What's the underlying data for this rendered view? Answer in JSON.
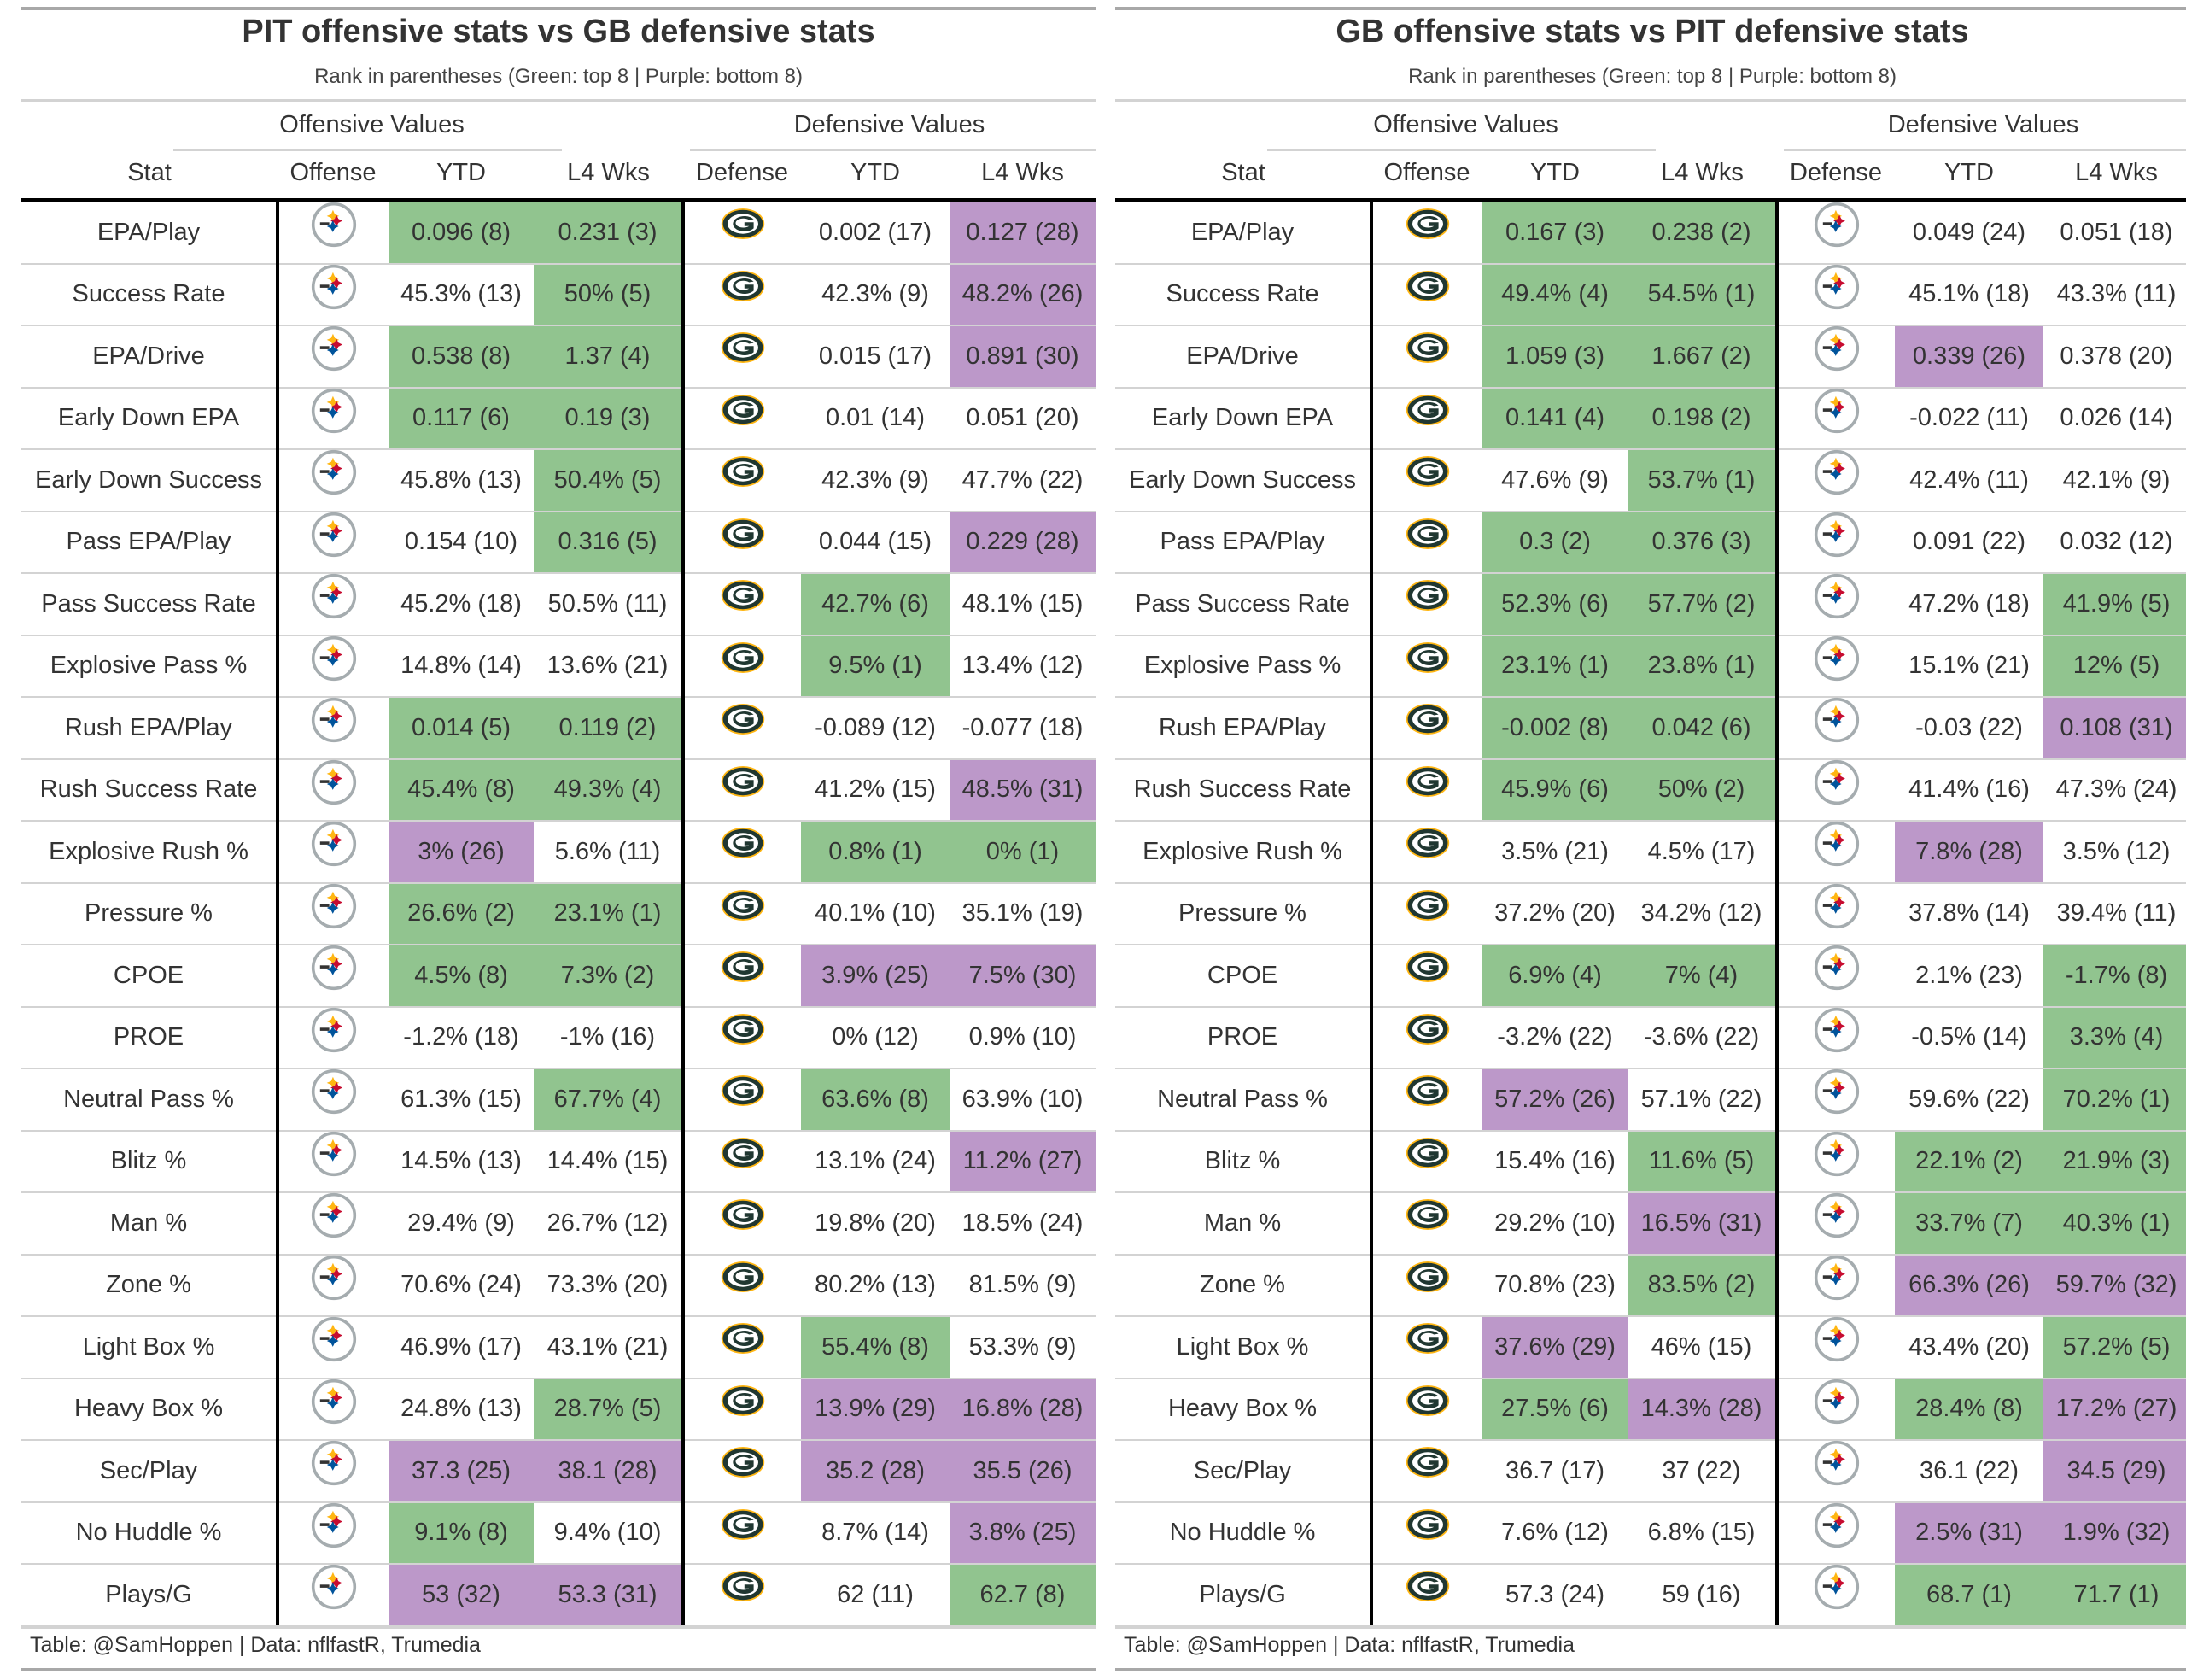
{
  "legend_colors": {
    "top8": "#91c48f",
    "bottom8": "#bc98c9"
  },
  "tables": [
    {
      "title": "PIT offensive stats vs GB defensive stats",
      "subtitle": "Rank in parentheses (Green: top 8 | Purple: bottom 8)",
      "group_headers": {
        "offense": "Offensive Values",
        "defense": "Defensive Values"
      },
      "columns": {
        "stat": "Stat",
        "offense": "Offense",
        "off_ytd": "YTD",
        "off_l4": "L4 Wks",
        "defense": "Defense",
        "def_ytd": "YTD",
        "def_l4": "L4 Wks"
      },
      "offense_team": "PIT",
      "offense_logo": "steelers-logo-icon",
      "defense_team": "GB",
      "defense_logo": "packers-logo-icon",
      "footer": "Table: @SamHoppen | Data: nflfastR, Trumedia",
      "rows": [
        {
          "stat": "EPA/Play",
          "off_ytd": "0.096 (8)",
          "off_ytd_c": "green",
          "off_l4": "0.231 (3)",
          "off_l4_c": "green",
          "def_ytd": "0.002 (17)",
          "def_ytd_c": "",
          "def_l4": "0.127 (28)",
          "def_l4_c": "purple"
        },
        {
          "stat": "Success Rate",
          "off_ytd": "45.3% (13)",
          "off_ytd_c": "",
          "off_l4": "50% (5)",
          "off_l4_c": "green",
          "def_ytd": "42.3% (9)",
          "def_ytd_c": "",
          "def_l4": "48.2% (26)",
          "def_l4_c": "purple"
        },
        {
          "stat": "EPA/Drive",
          "off_ytd": "0.538 (8)",
          "off_ytd_c": "green",
          "off_l4": "1.37 (4)",
          "off_l4_c": "green",
          "def_ytd": "0.015 (17)",
          "def_ytd_c": "",
          "def_l4": "0.891 (30)",
          "def_l4_c": "purple"
        },
        {
          "stat": "Early Down EPA",
          "off_ytd": "0.117 (6)",
          "off_ytd_c": "green",
          "off_l4": "0.19 (3)",
          "off_l4_c": "green",
          "def_ytd": "0.01 (14)",
          "def_ytd_c": "",
          "def_l4": "0.051 (20)",
          "def_l4_c": ""
        },
        {
          "stat": "Early Down Success",
          "off_ytd": "45.8% (13)",
          "off_ytd_c": "",
          "off_l4": "50.4% (5)",
          "off_l4_c": "green",
          "def_ytd": "42.3% (9)",
          "def_ytd_c": "",
          "def_l4": "47.7% (22)",
          "def_l4_c": ""
        },
        {
          "stat": "Pass EPA/Play",
          "off_ytd": "0.154 (10)",
          "off_ytd_c": "",
          "off_l4": "0.316 (5)",
          "off_l4_c": "green",
          "def_ytd": "0.044 (15)",
          "def_ytd_c": "",
          "def_l4": "0.229 (28)",
          "def_l4_c": "purple"
        },
        {
          "stat": "Pass Success Rate",
          "off_ytd": "45.2% (18)",
          "off_ytd_c": "",
          "off_l4": "50.5% (11)",
          "off_l4_c": "",
          "def_ytd": "42.7% (6)",
          "def_ytd_c": "green",
          "def_l4": "48.1% (15)",
          "def_l4_c": ""
        },
        {
          "stat": "Explosive Pass %",
          "off_ytd": "14.8% (14)",
          "off_ytd_c": "",
          "off_l4": "13.6% (21)",
          "off_l4_c": "",
          "def_ytd": "9.5% (1)",
          "def_ytd_c": "green",
          "def_l4": "13.4% (12)",
          "def_l4_c": ""
        },
        {
          "stat": "Rush EPA/Play",
          "off_ytd": "0.014 (5)",
          "off_ytd_c": "green",
          "off_l4": "0.119 (2)",
          "off_l4_c": "green",
          "def_ytd": "-0.089 (12)",
          "def_ytd_c": "",
          "def_l4": "-0.077 (18)",
          "def_l4_c": ""
        },
        {
          "stat": "Rush Success Rate",
          "off_ytd": "45.4% (8)",
          "off_ytd_c": "green",
          "off_l4": "49.3% (4)",
          "off_l4_c": "green",
          "def_ytd": "41.2% (15)",
          "def_ytd_c": "",
          "def_l4": "48.5% (31)",
          "def_l4_c": "purple"
        },
        {
          "stat": "Explosive Rush %",
          "off_ytd": "3% (26)",
          "off_ytd_c": "purple",
          "off_l4": "5.6% (11)",
          "off_l4_c": "",
          "def_ytd": "0.8% (1)",
          "def_ytd_c": "green",
          "def_l4": "0% (1)",
          "def_l4_c": "green"
        },
        {
          "stat": "Pressure %",
          "off_ytd": "26.6% (2)",
          "off_ytd_c": "green",
          "off_l4": "23.1% (1)",
          "off_l4_c": "green",
          "def_ytd": "40.1% (10)",
          "def_ytd_c": "",
          "def_l4": "35.1% (19)",
          "def_l4_c": ""
        },
        {
          "stat": "CPOE",
          "off_ytd": "4.5% (8)",
          "off_ytd_c": "green",
          "off_l4": "7.3% (2)",
          "off_l4_c": "green",
          "def_ytd": "3.9% (25)",
          "def_ytd_c": "purple",
          "def_l4": "7.5% (30)",
          "def_l4_c": "purple"
        },
        {
          "stat": "PROE",
          "off_ytd": "-1.2% (18)",
          "off_ytd_c": "",
          "off_l4": "-1% (16)",
          "off_l4_c": "",
          "def_ytd": "0% (12)",
          "def_ytd_c": "",
          "def_l4": "0.9% (10)",
          "def_l4_c": ""
        },
        {
          "stat": "Neutral Pass %",
          "off_ytd": "61.3% (15)",
          "off_ytd_c": "",
          "off_l4": "67.7% (4)",
          "off_l4_c": "green",
          "def_ytd": "63.6% (8)",
          "def_ytd_c": "green",
          "def_l4": "63.9% (10)",
          "def_l4_c": ""
        },
        {
          "stat": "Blitz %",
          "off_ytd": "14.5% (13)",
          "off_ytd_c": "",
          "off_l4": "14.4% (15)",
          "off_l4_c": "",
          "def_ytd": "13.1% (24)",
          "def_ytd_c": "",
          "def_l4": "11.2% (27)",
          "def_l4_c": "purple"
        },
        {
          "stat": "Man %",
          "off_ytd": "29.4% (9)",
          "off_ytd_c": "",
          "off_l4": "26.7% (12)",
          "off_l4_c": "",
          "def_ytd": "19.8% (20)",
          "def_ytd_c": "",
          "def_l4": "18.5% (24)",
          "def_l4_c": ""
        },
        {
          "stat": "Zone %",
          "off_ytd": "70.6% (24)",
          "off_ytd_c": "",
          "off_l4": "73.3% (20)",
          "off_l4_c": "",
          "def_ytd": "80.2% (13)",
          "def_ytd_c": "",
          "def_l4": "81.5% (9)",
          "def_l4_c": ""
        },
        {
          "stat": "Light Box %",
          "off_ytd": "46.9% (17)",
          "off_ytd_c": "",
          "off_l4": "43.1% (21)",
          "off_l4_c": "",
          "def_ytd": "55.4% (8)",
          "def_ytd_c": "green",
          "def_l4": "53.3% (9)",
          "def_l4_c": ""
        },
        {
          "stat": "Heavy Box %",
          "off_ytd": "24.8% (13)",
          "off_ytd_c": "",
          "off_l4": "28.7% (5)",
          "off_l4_c": "green",
          "def_ytd": "13.9% (29)",
          "def_ytd_c": "purple",
          "def_l4": "16.8% (28)",
          "def_l4_c": "purple"
        },
        {
          "stat": "Sec/Play",
          "off_ytd": "37.3 (25)",
          "off_ytd_c": "purple",
          "off_l4": "38.1 (28)",
          "off_l4_c": "purple",
          "def_ytd": "35.2 (28)",
          "def_ytd_c": "purple",
          "def_l4": "35.5 (26)",
          "def_l4_c": "purple"
        },
        {
          "stat": "No Huddle %",
          "off_ytd": "9.1% (8)",
          "off_ytd_c": "green",
          "off_l4": "9.4% (10)",
          "off_l4_c": "",
          "def_ytd": "8.7% (14)",
          "def_ytd_c": "",
          "def_l4": "3.8% (25)",
          "def_l4_c": "purple"
        },
        {
          "stat": "Plays/G",
          "off_ytd": "53 (32)",
          "off_ytd_c": "purple",
          "off_l4": "53.3 (31)",
          "off_l4_c": "purple",
          "def_ytd": "62 (11)",
          "def_ytd_c": "",
          "def_l4": "62.7 (8)",
          "def_l4_c": "green"
        }
      ]
    },
    {
      "title": "GB offensive stats vs PIT defensive stats",
      "subtitle": "Rank in parentheses (Green: top 8 | Purple: bottom 8)",
      "group_headers": {
        "offense": "Offensive Values",
        "defense": "Defensive Values"
      },
      "columns": {
        "stat": "Stat",
        "offense": "Offense",
        "off_ytd": "YTD",
        "off_l4": "L4 Wks",
        "defense": "Defense",
        "def_ytd": "YTD",
        "def_l4": "L4 Wks"
      },
      "offense_team": "GB",
      "offense_logo": "packers-logo-icon",
      "defense_team": "PIT",
      "defense_logo": "steelers-logo-icon",
      "footer": "Table: @SamHoppen | Data: nflfastR, Trumedia",
      "rows": [
        {
          "stat": "EPA/Play",
          "off_ytd": "0.167 (3)",
          "off_ytd_c": "green",
          "off_l4": "0.238 (2)",
          "off_l4_c": "green",
          "def_ytd": "0.049 (24)",
          "def_ytd_c": "",
          "def_l4": "0.051 (18)",
          "def_l4_c": ""
        },
        {
          "stat": "Success Rate",
          "off_ytd": "49.4% (4)",
          "off_ytd_c": "green",
          "off_l4": "54.5% (1)",
          "off_l4_c": "green",
          "def_ytd": "45.1% (18)",
          "def_ytd_c": "",
          "def_l4": "43.3% (11)",
          "def_l4_c": ""
        },
        {
          "stat": "EPA/Drive",
          "off_ytd": "1.059 (3)",
          "off_ytd_c": "green",
          "off_l4": "1.667 (2)",
          "off_l4_c": "green",
          "def_ytd": "0.339 (26)",
          "def_ytd_c": "purple",
          "def_l4": "0.378 (20)",
          "def_l4_c": ""
        },
        {
          "stat": "Early Down EPA",
          "off_ytd": "0.141 (4)",
          "off_ytd_c": "green",
          "off_l4": "0.198 (2)",
          "off_l4_c": "green",
          "def_ytd": "-0.022 (11)",
          "def_ytd_c": "",
          "def_l4": "0.026 (14)",
          "def_l4_c": ""
        },
        {
          "stat": "Early Down Success",
          "off_ytd": "47.6% (9)",
          "off_ytd_c": "",
          "off_l4": "53.7% (1)",
          "off_l4_c": "green",
          "def_ytd": "42.4% (11)",
          "def_ytd_c": "",
          "def_l4": "42.1% (9)",
          "def_l4_c": ""
        },
        {
          "stat": "Pass EPA/Play",
          "off_ytd": "0.3 (2)",
          "off_ytd_c": "green",
          "off_l4": "0.376 (3)",
          "off_l4_c": "green",
          "def_ytd": "0.091 (22)",
          "def_ytd_c": "",
          "def_l4": "0.032 (12)",
          "def_l4_c": ""
        },
        {
          "stat": "Pass Success Rate",
          "off_ytd": "52.3% (6)",
          "off_ytd_c": "green",
          "off_l4": "57.7% (2)",
          "off_l4_c": "green",
          "def_ytd": "47.2% (18)",
          "def_ytd_c": "",
          "def_l4": "41.9% (5)",
          "def_l4_c": "green"
        },
        {
          "stat": "Explosive Pass %",
          "off_ytd": "23.1% (1)",
          "off_ytd_c": "green",
          "off_l4": "23.8% (1)",
          "off_l4_c": "green",
          "def_ytd": "15.1% (21)",
          "def_ytd_c": "",
          "def_l4": "12% (5)",
          "def_l4_c": "green"
        },
        {
          "stat": "Rush EPA/Play",
          "off_ytd": "-0.002 (8)",
          "off_ytd_c": "green",
          "off_l4": "0.042 (6)",
          "off_l4_c": "green",
          "def_ytd": "-0.03 (22)",
          "def_ytd_c": "",
          "def_l4": "0.108 (31)",
          "def_l4_c": "purple"
        },
        {
          "stat": "Rush Success Rate",
          "off_ytd": "45.9% (6)",
          "off_ytd_c": "green",
          "off_l4": "50% (2)",
          "off_l4_c": "green",
          "def_ytd": "41.4% (16)",
          "def_ytd_c": "",
          "def_l4": "47.3% (24)",
          "def_l4_c": ""
        },
        {
          "stat": "Explosive Rush %",
          "off_ytd": "3.5% (21)",
          "off_ytd_c": "",
          "off_l4": "4.5% (17)",
          "off_l4_c": "",
          "def_ytd": "7.8% (28)",
          "def_ytd_c": "purple",
          "def_l4": "3.5% (12)",
          "def_l4_c": ""
        },
        {
          "stat": "Pressure %",
          "off_ytd": "37.2% (20)",
          "off_ytd_c": "",
          "off_l4": "34.2% (12)",
          "off_l4_c": "",
          "def_ytd": "37.8% (14)",
          "def_ytd_c": "",
          "def_l4": "39.4% (11)",
          "def_l4_c": ""
        },
        {
          "stat": "CPOE",
          "off_ytd": "6.9% (4)",
          "off_ytd_c": "green",
          "off_l4": "7% (4)",
          "off_l4_c": "green",
          "def_ytd": "2.1% (23)",
          "def_ytd_c": "",
          "def_l4": "-1.7% (8)",
          "def_l4_c": "green"
        },
        {
          "stat": "PROE",
          "off_ytd": "-3.2% (22)",
          "off_ytd_c": "",
          "off_l4": "-3.6% (22)",
          "off_l4_c": "",
          "def_ytd": "-0.5% (14)",
          "def_ytd_c": "",
          "def_l4": "3.3% (4)",
          "def_l4_c": "green"
        },
        {
          "stat": "Neutral Pass %",
          "off_ytd": "57.2% (26)",
          "off_ytd_c": "purple",
          "off_l4": "57.1% (22)",
          "off_l4_c": "",
          "def_ytd": "59.6% (22)",
          "def_ytd_c": "",
          "def_l4": "70.2% (1)",
          "def_l4_c": "green"
        },
        {
          "stat": "Blitz %",
          "off_ytd": "15.4% (16)",
          "off_ytd_c": "",
          "off_l4": "11.6% (5)",
          "off_l4_c": "green",
          "def_ytd": "22.1% (2)",
          "def_ytd_c": "green",
          "def_l4": "21.9% (3)",
          "def_l4_c": "green"
        },
        {
          "stat": "Man %",
          "off_ytd": "29.2% (10)",
          "off_ytd_c": "",
          "off_l4": "16.5% (31)",
          "off_l4_c": "purple",
          "def_ytd": "33.7% (7)",
          "def_ytd_c": "green",
          "def_l4": "40.3% (1)",
          "def_l4_c": "green"
        },
        {
          "stat": "Zone %",
          "off_ytd": "70.8% (23)",
          "off_ytd_c": "",
          "off_l4": "83.5% (2)",
          "off_l4_c": "green",
          "def_ytd": "66.3% (26)",
          "def_ytd_c": "purple",
          "def_l4": "59.7% (32)",
          "def_l4_c": "purple"
        },
        {
          "stat": "Light Box %",
          "off_ytd": "37.6% (29)",
          "off_ytd_c": "purple",
          "off_l4": "46% (15)",
          "off_l4_c": "",
          "def_ytd": "43.4% (20)",
          "def_ytd_c": "",
          "def_l4": "57.2% (5)",
          "def_l4_c": "green"
        },
        {
          "stat": "Heavy Box %",
          "off_ytd": "27.5% (6)",
          "off_ytd_c": "green",
          "off_l4": "14.3% (28)",
          "off_l4_c": "purple",
          "def_ytd": "28.4% (8)",
          "def_ytd_c": "green",
          "def_l4": "17.2% (27)",
          "def_l4_c": "purple"
        },
        {
          "stat": "Sec/Play",
          "off_ytd": "36.7 (17)",
          "off_ytd_c": "",
          "off_l4": "37 (22)",
          "off_l4_c": "",
          "def_ytd": "36.1 (22)",
          "def_ytd_c": "",
          "def_l4": "34.5 (29)",
          "def_l4_c": "purple"
        },
        {
          "stat": "No Huddle %",
          "off_ytd": "7.6% (12)",
          "off_ytd_c": "",
          "off_l4": "6.8% (15)",
          "off_l4_c": "",
          "def_ytd": "2.5% (31)",
          "def_ytd_c": "purple",
          "def_l4": "1.9% (32)",
          "def_l4_c": "purple"
        },
        {
          "stat": "Plays/G",
          "off_ytd": "57.3 (24)",
          "off_ytd_c": "",
          "off_l4": "59 (16)",
          "off_l4_c": "",
          "def_ytd": "68.7 (1)",
          "def_ytd_c": "green",
          "def_l4": "71.7 (1)",
          "def_l4_c": "green"
        }
      ]
    }
  ]
}
